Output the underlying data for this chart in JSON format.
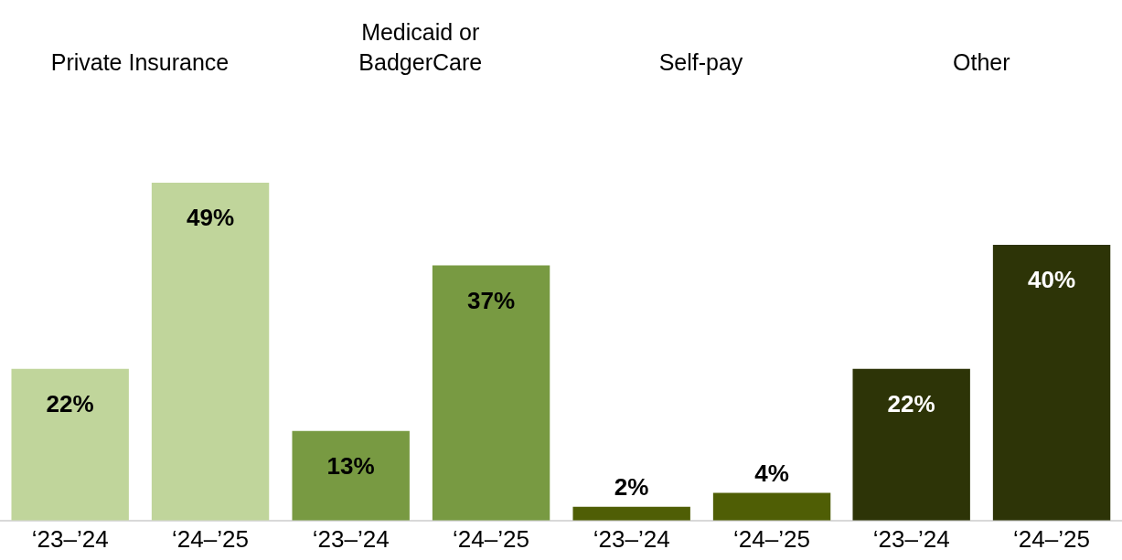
{
  "chart_data": [
    {
      "type": "bar",
      "title": "Private Insurance",
      "categories": [
        "‘23–’24",
        "‘24–’25"
      ],
      "values": [
        22,
        49
      ],
      "color": "#c0d59b",
      "value_labels": [
        "22%",
        "49%"
      ]
    },
    {
      "type": "bar",
      "title": "Medicaid or BadgerCare",
      "categories": [
        "‘23–’24",
        "‘24–’25"
      ],
      "values": [
        13,
        37
      ],
      "color": "#789a42",
      "value_labels": [
        "13%",
        "37%"
      ]
    },
    {
      "type": "bar",
      "title": "Self-pay",
      "categories": [
        "‘23–’24",
        "‘24–’25"
      ],
      "values": [
        2,
        4
      ],
      "color": "#4f5e05",
      "value_labels": [
        "2%",
        "4%"
      ]
    },
    {
      "type": "bar",
      "title": "Other",
      "categories": [
        "‘23–’24",
        "‘24–’25"
      ],
      "values": [
        22,
        40
      ],
      "color": "#2d3407",
      "value_labels": [
        "22%",
        "40%"
      ]
    }
  ]
}
